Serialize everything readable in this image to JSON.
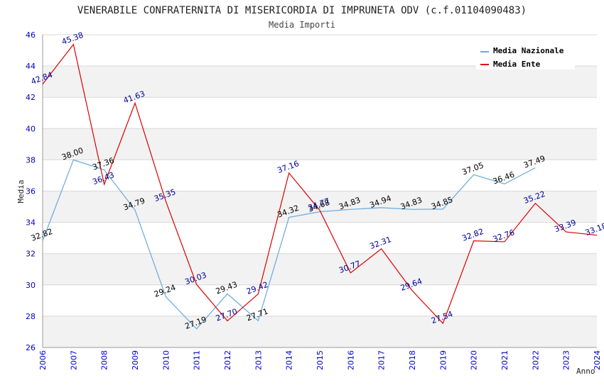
{
  "chart_data": {
    "type": "line",
    "title": "VENERABILE CONFRATERNITA DI MISERICORDIA DI IMPRUNETA ODV (c.f.01104090483)",
    "subtitle": "Media Importi",
    "xlabel": "Anno",
    "ylabel": "Media",
    "ylim": [
      26,
      46
    ],
    "yticks": [
      "26",
      "28",
      "30",
      "32",
      "34",
      "36",
      "38",
      "40",
      "42",
      "44",
      "46"
    ],
    "x": [
      "2006",
      "2007",
      "2008",
      "2009",
      "2010",
      "2011",
      "2012",
      "2013",
      "2014",
      "2015",
      "2016",
      "2017",
      "2018",
      "2019",
      "2020",
      "2021",
      "2022",
      "2023",
      "2024"
    ],
    "legend_position": "top-right",
    "grid": true,
    "series": [
      {
        "name": "Media Nazionale",
        "color": "#66aadd",
        "label_color": "#000000",
        "values": [
          32.82,
          38.0,
          37.36,
          34.79,
          29.24,
          27.19,
          29.43,
          27.71,
          34.32,
          34.68,
          34.83,
          34.94,
          34.83,
          34.85,
          37.05,
          36.46,
          37.49,
          null,
          null
        ],
        "labels": [
          "32.82",
          "38.00",
          "37.36",
          "34.79",
          "29.24",
          "27.19",
          "29.43",
          "27.71",
          "34.32",
          "34.68",
          "34.83",
          "34.94",
          "34.83",
          "34.85",
          "37.05",
          "36.46",
          "37.49",
          null,
          null
        ]
      },
      {
        "name": "Media Ente",
        "color": "#dd0000",
        "label_color": "#000099",
        "values": [
          42.84,
          45.38,
          36.43,
          41.63,
          35.35,
          30.03,
          27.7,
          29.42,
          37.16,
          34.77,
          30.77,
          32.31,
          29.64,
          27.54,
          32.82,
          32.76,
          35.22,
          33.39,
          33.18
        ],
        "labels": [
          "42.84",
          "45.38",
          "36.43",
          "41.63",
          "35.35",
          "30.03",
          "27.70",
          "29.42",
          "37.16",
          "34.77",
          "30.77",
          "32.31",
          "29.64",
          "27.54",
          "32.82",
          "32.76",
          "35.22",
          "33.39",
          "33.18"
        ]
      }
    ]
  }
}
